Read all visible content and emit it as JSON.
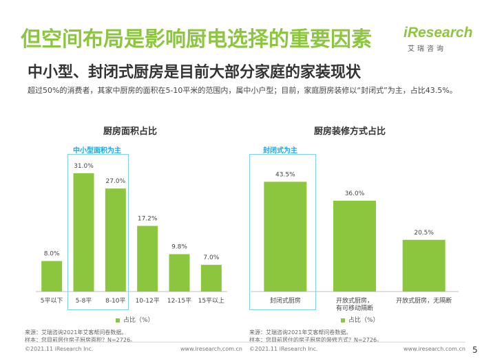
{
  "header": {
    "title": "但空间布局是影响厨电选择的重要因素",
    "subtitle": "中小型、封闭式厨房是目前大部分家庭的家装现状",
    "description": "超过50%的消费者，其家中厨房的面积在5-10平米的范围内，属中小户型；目前，家庭厨房装修以“封闭式”为主，占比43.5%。"
  },
  "logo": {
    "name": "iResearch",
    "sub": "艾瑞咨询"
  },
  "chart_data": [
    {
      "type": "bar",
      "title": "厨房面积占比",
      "highlight_label": "中小型面积为主",
      "categories": [
        "5平以下",
        "5-8平",
        "8-10平",
        "10-12平",
        "12-15平",
        "15平以上"
      ],
      "values": [
        8.0,
        31.0,
        27.0,
        17.2,
        9.8,
        7.0
      ],
      "value_labels": [
        "8.0%",
        "31.0%",
        "27.0%",
        "17.2%",
        "9.8%",
        "7.0%"
      ],
      "series": [
        {
          "name": "占比（%）",
          "values": [
            8.0,
            31.0,
            27.0,
            17.2,
            9.8,
            7.0
          ]
        }
      ],
      "legend": "bottom",
      "color": "#8cc63f",
      "source": "来源：艾瑞咨询2021年艾客帮问卷数据。",
      "sample": "样本：您目前居住房子厨房面积？N=2726。"
    },
    {
      "type": "bar",
      "title": "厨房装修方式占比",
      "highlight_label": "封闭式为主",
      "categories": [
        "封闭式厨房",
        "开放式厨房，有可移动隔断",
        "开放式厨房，无隔断"
      ],
      "category_lines": [
        [
          "封闭式厨房"
        ],
        [
          "开放式厨房，",
          "有可移动隔断"
        ],
        [
          "开放式厨房，无隔断"
        ]
      ],
      "values": [
        43.5,
        36.0,
        20.5
      ],
      "value_labels": [
        "43.5%",
        "36.0%",
        "20.5%"
      ],
      "series": [
        {
          "name": "占比（%）",
          "values": [
            43.5,
            36.0,
            20.5
          ]
        }
      ],
      "legend": "bottom",
      "color": "#8cc63f",
      "source": "来源：艾瑞咨询2021年艾客帮问卷数据。",
      "sample": "样本：您目前居住的房子厨房的装修方式？N=2726。"
    }
  ],
  "footer": {
    "left_copyright": "©2021.11 iResearch Inc.",
    "left_url": "www.iresearch.com.cn",
    "right_copyright": "©2021.11 iResearch Inc.",
    "right_url": "www.iresearch.com.cn",
    "page_number": "5"
  }
}
